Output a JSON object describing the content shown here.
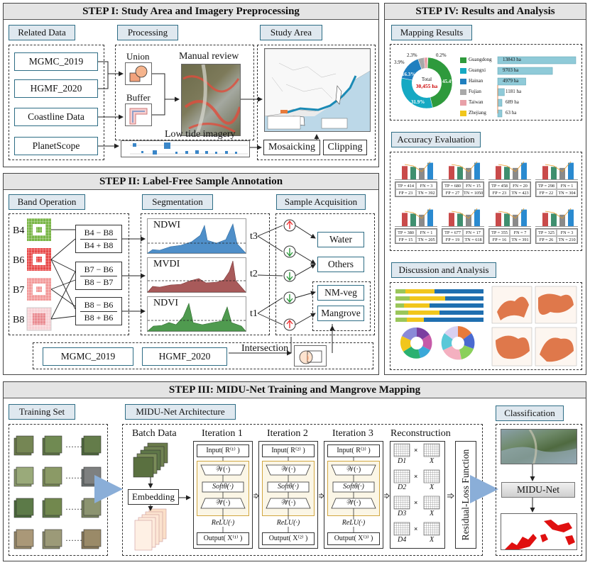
{
  "step1": {
    "title": "STEP I: Study Area and Imagery Preprocessing",
    "related_data_tag": "Related Data",
    "processing_tag": "Processing",
    "study_area_tag": "Study Area",
    "data_items": [
      "MGMC_2019",
      "HGMF_2020",
      "Coastline Data",
      "PlanetScope"
    ],
    "union_label": "Union",
    "buffer_label": "Buffer",
    "manual_review_label": "Manual review",
    "low_tide_label": "Low tide imagery",
    "mosaicking_label": "Mosaicking",
    "clipping_label": "Clipping"
  },
  "step2": {
    "title": "STEP II: Label-Free Sample Annotation",
    "band_tag": "Band Operation",
    "segmentation_tag": "Segmentation",
    "sample_tag": "Sample Acquisition",
    "bands": [
      "B4",
      "B6",
      "B7",
      "B8"
    ],
    "ndwi_num": "B4 − B8",
    "ndwi_den": "B4 + B8",
    "mvdi_num": "B7 − B6",
    "mvdi_den": "B8 − B7",
    "ndvi_num": "B8 − B6",
    "ndvi_den": "B8 + B6",
    "indices": [
      "NDWI",
      "MVDI",
      "NDVI"
    ],
    "thresholds": [
      "t3",
      "t2",
      "t1"
    ],
    "classes": [
      "Water",
      "Others",
      "NM-veg",
      "Mangrove"
    ],
    "bottom_data": [
      "MGMC_2019",
      "HGMF_2020"
    ],
    "intersection_label": "Intersection"
  },
  "step3": {
    "title": "STEP III: MIDU-Net Training and Mangrove Mapping",
    "training_tag": "Training Set",
    "arch_tag": "MIDU-Net Architecture",
    "classification_tag": "Classification",
    "batch_label": "Batch Data",
    "embedding_label": "Embedding",
    "iterations": [
      {
        "title": "Iteration 1",
        "input": "Input( R⁽¹⁾ )",
        "output": "Output( X⁽¹⁾ )"
      },
      {
        "title": "Iteration 2",
        "input": "Input( R⁽²⁾ )",
        "output": "Output( X⁽²⁾ )"
      },
      {
        "title": "Iteration 3",
        "input": "Input( R⁽³⁾ )",
        "output": "Output( X⁽³⁾ )"
      }
    ],
    "w_op": "𝒲(·)",
    "soft_op": "Softθ(·)",
    "w_tilde_op": "𝒲̃(·)",
    "relu_op": "ReLU(·)",
    "reconstruction_label": "Reconstruction",
    "dicts": [
      "D1",
      "D2",
      "D3",
      "D4"
    ],
    "x_label": "X",
    "loss_label": "Residual-Loss Function",
    "midu_label": "MIDU-Net",
    "ellipsis": "……"
  },
  "step4": {
    "title": "STEP IV:  Results and Analysis",
    "mapping_tag": "Mapping Results",
    "accuracy_tag": "Accuracy Evaluation",
    "discussion_tag": "Discussion and Analysis",
    "total_label": "Total",
    "total_value": "30,455 ha",
    "pie_labels": [
      "45.4%",
      "31.9%",
      "16.3%",
      "3.9%",
      "2.3%",
      "0.2%"
    ],
    "legend": [
      "Guangdong",
      "Guangxi",
      "Hainan",
      "Fujian",
      "Taiwan",
      "Zhejiang"
    ],
    "legend_colors": [
      "#2e9a3c",
      "#15a9c3",
      "#1f7fbf",
      "#a9a9a9",
      "#e8a0a8",
      "#f1c61c"
    ],
    "bar_labels": [
      "13843 ha",
      "9703 ha",
      "4979 ha",
      "1181 ha",
      "689 ha",
      "63 ha"
    ],
    "bar_values": [
      13843,
      9703,
      4979,
      1181,
      689,
      63
    ],
    "confusion": [
      [
        "TP = 414",
        "FN = 3",
        "FP = 23",
        "TN = 392"
      ],
      [
        "TP = 680",
        "FN = 15",
        "FP = 27",
        "TN = 1050"
      ],
      [
        "TP = 458",
        "FN = 20",
        "FP = 23",
        "TN = 423"
      ],
      [
        "TP = 298",
        "FN = 1",
        "FP = 22",
        "TN = 304"
      ],
      [
        "TP = 380",
        "FN = 1",
        "FP = 15",
        "TN = 205"
      ],
      [
        "TP = 677",
        "FN = 17",
        "FP = 19",
        "TN = 618"
      ],
      [
        "TP = 355",
        "FN = 7",
        "FP = 16",
        "TN = 391"
      ],
      [
        "TP = 325",
        "FN = 3",
        "FP = 26",
        "TN = 210"
      ]
    ]
  }
}
